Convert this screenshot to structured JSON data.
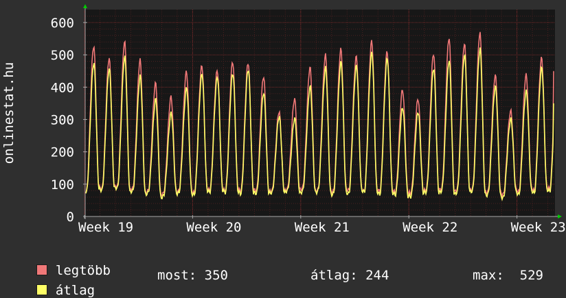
{
  "chart_data": {
    "type": "line",
    "ylabel": "onlinestat.hu",
    "ylim": [
      0,
      640
    ],
    "yticks": [
      0,
      100,
      200,
      300,
      400,
      500,
      600
    ],
    "xticks": [
      "Week 19",
      "Week 20",
      "Week 21",
      "Week 22",
      "Week 23"
    ],
    "grid": true,
    "colors": {
      "background": "#2f2f2f",
      "plot_area": "#171717",
      "grid_major": "#7a2a2a",
      "grid_minor": "#4a2020",
      "axis": "#aaaaaa",
      "arrow": "#00cc00",
      "max_series": "#f07878",
      "avg_series": "#ffff66"
    },
    "series": [
      {
        "name": "legtöbb",
        "color": "#f07878",
        "daily_peaks": [
          527,
          487,
          537,
          480,
          410,
          370,
          450,
          470,
          455,
          480,
          475,
          430,
          320,
          360,
          460,
          500,
          520,
          498,
          545,
          510,
          390,
          360,
          500,
          550,
          535,
          570,
          440,
          330,
          440,
          490,
          505,
          500,
          450
        ],
        "daily_lows": [
          80,
          85,
          90,
          82,
          75,
          70,
          80,
          78,
          85,
          82,
          80,
          78,
          75,
          80,
          85,
          82,
          80,
          85,
          82,
          80,
          75,
          70,
          78,
          82,
          80,
          85,
          78,
          72,
          80,
          82,
          85,
          80,
          85
        ],
        "last_value": 450
      },
      {
        "name": "átlag",
        "color": "#ffff66",
        "daily_peaks": [
          475,
          455,
          490,
          430,
          360,
          320,
          400,
          445,
          435,
          445,
          455,
          380,
          305,
          300,
          400,
          460,
          480,
          470,
          510,
          490,
          335,
          320,
          455,
          480,
          500,
          520,
          405,
          305,
          390,
          460,
          470,
          480,
          400
        ],
        "daily_lows": [
          78,
          80,
          85,
          75,
          70,
          62,
          75,
          72,
          80,
          78,
          72,
          70,
          70,
          75,
          75,
          78,
          72,
          75,
          80,
          72,
          68,
          60,
          72,
          75,
          72,
          80,
          70,
          62,
          72,
          75,
          78,
          75,
          80
        ],
        "last_value": 350
      }
    ],
    "legend": {
      "max_label": "legtöbb",
      "avg_label": "átlag",
      "stats": {
        "most": "most: 350",
        "atlag": "átlag: 244",
        "max": "max:  529"
      }
    }
  }
}
